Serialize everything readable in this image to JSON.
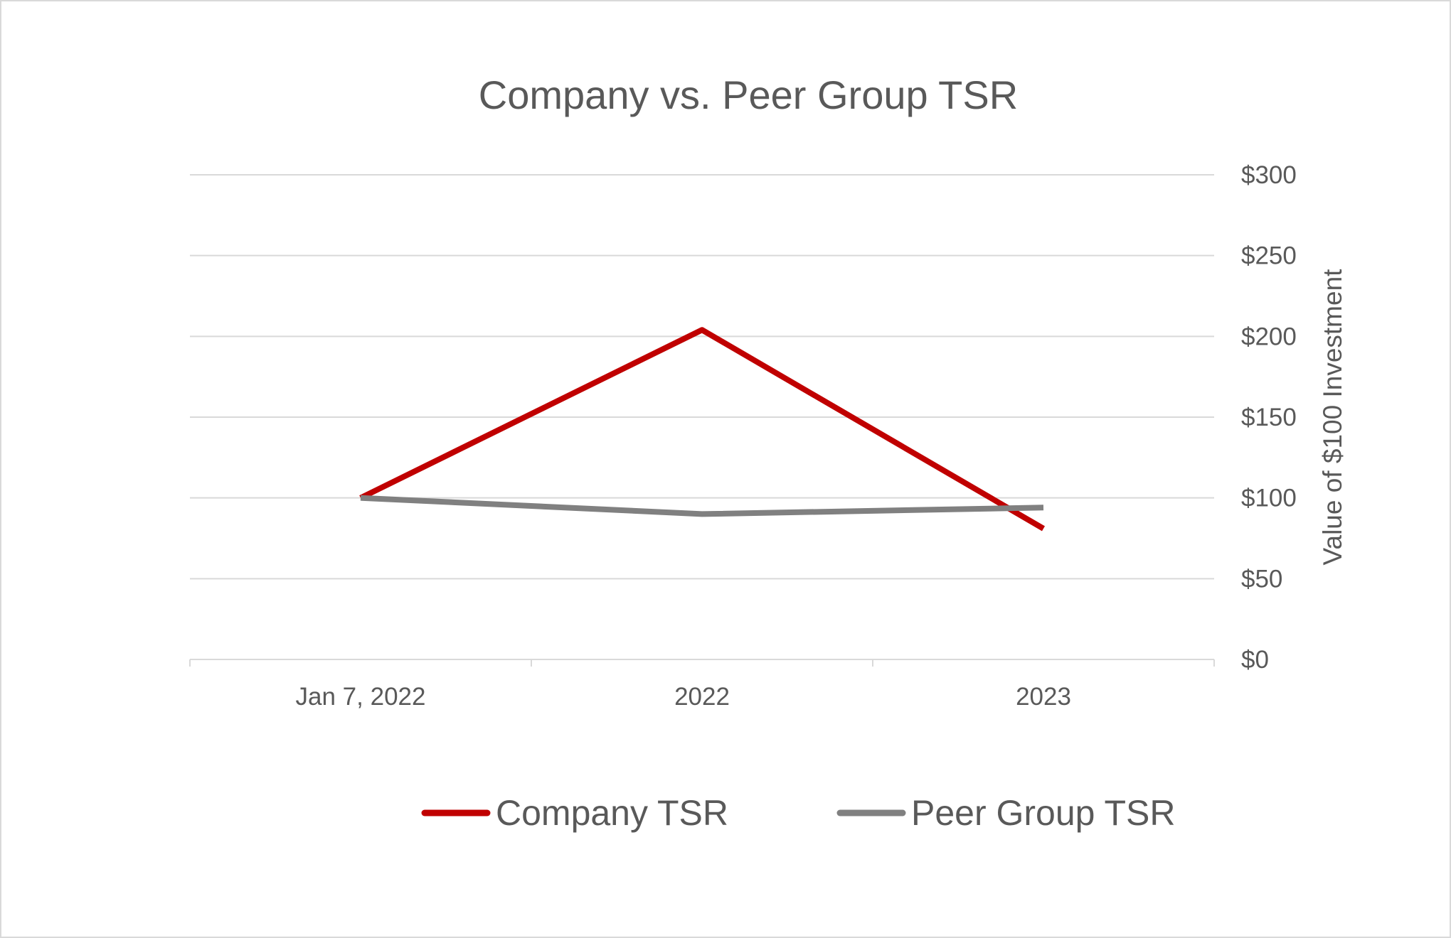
{
  "chart_data": {
    "type": "line",
    "title": "Company vs. Peer Group TSR",
    "categories": [
      "Jan 7, 2022",
      "2022",
      "2023"
    ],
    "series": [
      {
        "name": "Company TSR",
        "values": [
          100,
          204,
          81
        ],
        "color": "#c00000"
      },
      {
        "name": "Peer Group TSR",
        "values": [
          100,
          90,
          94
        ],
        "color": "#808080"
      }
    ],
    "ylabel": "Value of $100 Investment",
    "y_axis_position": "right",
    "ylim": [
      0,
      300
    ],
    "y_ticks": [
      0,
      50,
      100,
      150,
      200,
      250,
      300
    ],
    "y_tick_labels": [
      "$0",
      "$50",
      "$100",
      "$150",
      "$200",
      "$250",
      "$300"
    ],
    "grid": true,
    "legend_position": "bottom"
  }
}
